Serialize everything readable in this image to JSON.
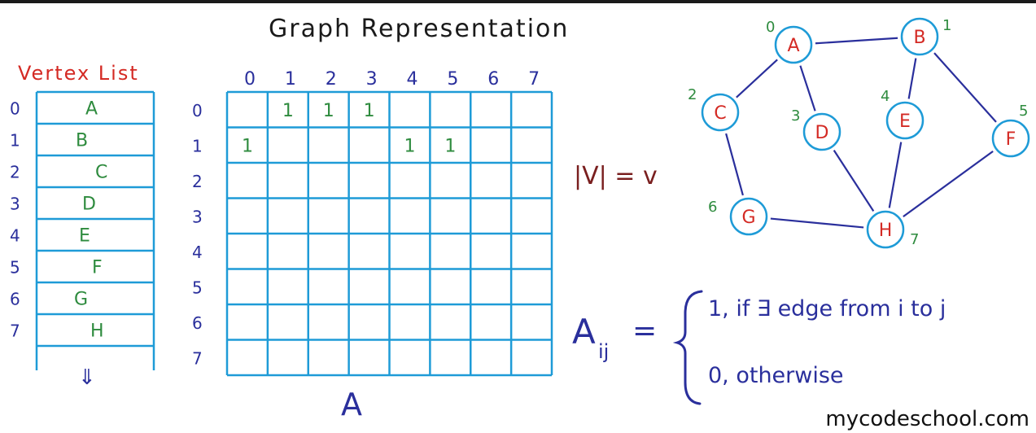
{
  "title": "Graph Representation",
  "vertex_list": {
    "heading": "Vertex List",
    "indices": [
      "0",
      "1",
      "2",
      "3",
      "4",
      "5",
      "6",
      "7"
    ],
    "entries": [
      "A",
      "B",
      "C",
      "D",
      "E",
      "F",
      "G",
      "H"
    ],
    "more_arrow": "⇓"
  },
  "matrix": {
    "name": "A",
    "col_indices": [
      "0",
      "1",
      "2",
      "3",
      "4",
      "5",
      "6",
      "7"
    ],
    "row_indices": [
      "0",
      "1",
      "2",
      "3",
      "4",
      "5",
      "6",
      "7"
    ],
    "filled_cells": [
      {
        "row": 0,
        "col": 1,
        "value": "1"
      },
      {
        "row": 0,
        "col": 2,
        "value": "1"
      },
      {
        "row": 0,
        "col": 3,
        "value": "1"
      },
      {
        "row": 1,
        "col": 0,
        "value": "1"
      },
      {
        "row": 1,
        "col": 4,
        "value": "1"
      },
      {
        "row": 1,
        "col": 5,
        "value": "1"
      }
    ]
  },
  "vertex_count": "|V| = v",
  "graph": {
    "nodes": [
      {
        "id": "A",
        "index": "0"
      },
      {
        "id": "B",
        "index": "1"
      },
      {
        "id": "C",
        "index": "2"
      },
      {
        "id": "D",
        "index": "3"
      },
      {
        "id": "E",
        "index": "4"
      },
      {
        "id": "F",
        "index": "5"
      },
      {
        "id": "G",
        "index": "6"
      },
      {
        "id": "H",
        "index": "7"
      }
    ],
    "edges": [
      [
        "A",
        "B"
      ],
      [
        "A",
        "C"
      ],
      [
        "A",
        "D"
      ],
      [
        "B",
        "E"
      ],
      [
        "B",
        "F"
      ],
      [
        "C",
        "G"
      ],
      [
        "D",
        "H"
      ],
      [
        "E",
        "H"
      ],
      [
        "F",
        "H"
      ],
      [
        "G",
        "H"
      ]
    ]
  },
  "formula": {
    "lhs": "A",
    "subscript": "ij",
    "equals": "=",
    "case1": "1, if ∃ edge from i to j",
    "case2": "0, otherwise"
  },
  "watermark": "mycodeschool.com",
  "colors": {
    "grid": "#1e9bd7",
    "vertex_label": "#d42a24",
    "entry": "#2e8b3e",
    "index": "#2a2f9c",
    "edge": "#2a2f9c"
  }
}
